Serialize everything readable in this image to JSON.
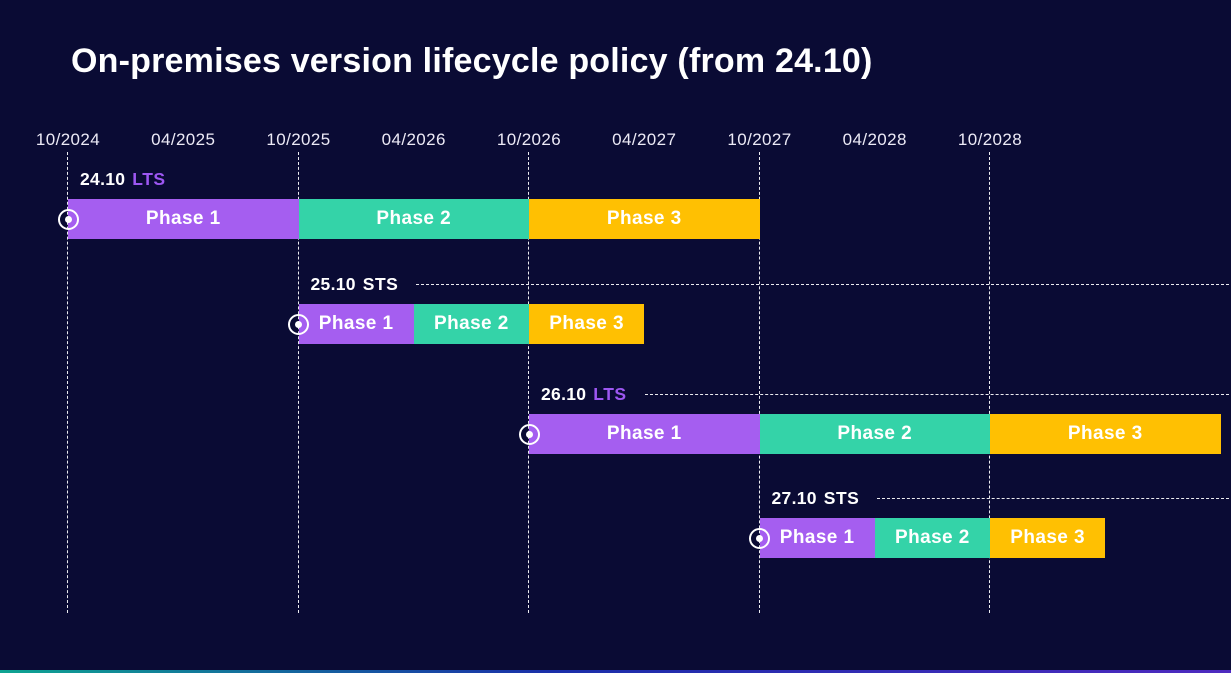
{
  "title": "On-premises version lifecycle policy (from 24.10)",
  "colors": {
    "background": "#0a0b34",
    "title_text": "#ffffff",
    "axis_text": "#eceaf6",
    "gridline": "#ffffff",
    "lts_badge": "#9d57f2",
    "sts_badge": "#ffffff",
    "phase1": "#a55ef0",
    "phase2": "#34d3a8",
    "phase3": "#ffc002",
    "bottom_strip_gradient": [
      "#0fbfa2",
      "#1d34be",
      "#5a2fd8"
    ]
  },
  "chart_data": {
    "type": "gantt",
    "title": "On-premises version lifecycle policy (from 24.10)",
    "x_ticks": [
      "10/2024",
      "04/2025",
      "10/2025",
      "04/2026",
      "10/2026",
      "04/2027",
      "10/2027",
      "04/2028",
      "10/2028"
    ],
    "gridlines_at": [
      "10/2024",
      "10/2025",
      "10/2026",
      "10/2027",
      "10/2028"
    ],
    "legend_position": "none",
    "phase_colors": [
      "#a55ef0",
      "#34d3a8",
      "#ffc002"
    ],
    "channel_colors": {
      "LTS": "#9d57f2",
      "STS": "#ffffff"
    },
    "start_marker": "circled-dot",
    "rows": [
      {
        "version": "24.10",
        "channel": "LTS",
        "label": "24.10 LTS",
        "trailing_dashed_line": false,
        "phases": [
          {
            "label": "Phase 1",
            "start": "10/2024",
            "end": "10/2025"
          },
          {
            "label": "Phase 2",
            "start": "10/2025",
            "end": "10/2026"
          },
          {
            "label": "Phase 3",
            "start": "10/2026",
            "end": "10/2027"
          }
        ]
      },
      {
        "version": "25.10",
        "channel": "STS",
        "label": "25.10 STS",
        "trailing_dashed_line": true,
        "phases": [
          {
            "label": "Phase 1",
            "start": "10/2025",
            "end": "04/2026"
          },
          {
            "label": "Phase 2",
            "start": "04/2026",
            "end": "10/2026"
          },
          {
            "label": "Phase 3",
            "start": "10/2026",
            "end": "04/2027"
          }
        ]
      },
      {
        "version": "26.10",
        "channel": "LTS",
        "label": "26.10 LTS",
        "trailing_dashed_line": true,
        "phases": [
          {
            "label": "Phase 1",
            "start": "10/2026",
            "end": "10/2027"
          },
          {
            "label": "Phase 2",
            "start": "10/2027",
            "end": "10/2028"
          },
          {
            "label": "Phase 3",
            "start": "10/2028",
            "end": "10/2029"
          }
        ]
      },
      {
        "version": "27.10",
        "channel": "STS",
        "label": "27.10 STS",
        "trailing_dashed_line": true,
        "phases": [
          {
            "label": "Phase 1",
            "start": "10/2027",
            "end": "04/2028"
          },
          {
            "label": "Phase 2",
            "start": "04/2028",
            "end": "10/2028"
          },
          {
            "label": "Phase 3",
            "start": "10/2028",
            "end": "04/2029"
          }
        ]
      }
    ]
  }
}
